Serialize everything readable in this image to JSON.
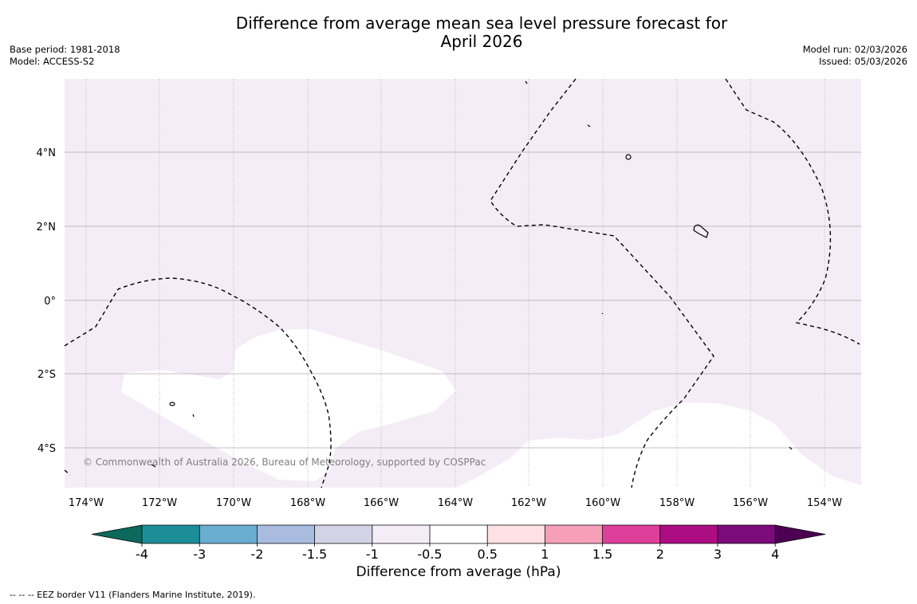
{
  "title_line1": "Difference from average mean sea level pressure forecast for",
  "title_line2": "April 2026",
  "base_period": "Base period: 1981-2018",
  "model": "Model: ACCESS-S2",
  "model_run": "Model run: 02/03/2026",
  "issued": "Issued: 05/03/2026",
  "copyright": "© Commonwealth of Australia 2026, Bureau of Meteorology, supported by COSPPac",
  "colorbar": {
    "label": "Difference from average (hPa)",
    "ticks": [
      "-4",
      "-3",
      "-2",
      "-1.5",
      "-1",
      "-0.5",
      "0.5",
      "1",
      "1.5",
      "2",
      "3",
      "4"
    ],
    "colors": [
      "#0b6a5c",
      "#1d8e98",
      "#6aaed1",
      "#a9bce0",
      "#d3d3e8",
      "#f4ecf6",
      "#ffffff",
      "#fde1e3",
      "#f79fb9",
      "#de3f9b",
      "#ad0d82",
      "#7b0a7a",
      "#4d0052"
    ]
  },
  "map_colors": {
    "background": "#f4ecf6",
    "white_region": "#ffffff",
    "grid": "#b0a8b4"
  },
  "lat_labels": [
    "4°N",
    "2°N",
    "0°",
    "2°S",
    "4°S"
  ],
  "lon_labels": [
    "174°W",
    "172°W",
    "170°W",
    "168°W",
    "166°W",
    "164°W",
    "162°W",
    "160°W",
    "158°W",
    "156°W",
    "154°W"
  ],
  "footnote": "--  --  -- EEZ border V11 (Flanders Marine Institute, 2019)."
}
